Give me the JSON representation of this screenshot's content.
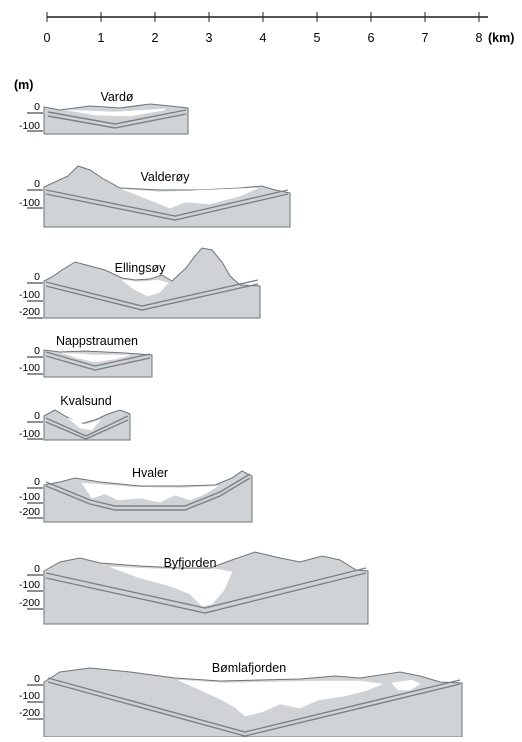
{
  "scale_bar": {
    "tick_labels": [
      "0",
      "1",
      "2",
      "3",
      "4",
      "5",
      "6",
      "7",
      "8"
    ],
    "unit": "(km)"
  },
  "depth_unit": "(m)",
  "sections": [
    {
      "name": "Vardø",
      "depth_labels": [
        "0",
        "-100"
      ]
    },
    {
      "name": "Valderøy",
      "depth_labels": [
        "0",
        "-100"
      ]
    },
    {
      "name": "Ellingsøy",
      "depth_labels": [
        "0",
        "-100",
        "-200"
      ]
    },
    {
      "name": "Nappstraumen",
      "depth_labels": [
        "0",
        "-100"
      ]
    },
    {
      "name": "Kvalsund",
      "depth_labels": [
        "0",
        "-100"
      ]
    },
    {
      "name": "Hvaler",
      "depth_labels": [
        "0",
        "-100",
        "-200"
      ]
    },
    {
      "name": "Byfjorden",
      "depth_labels": [
        "0",
        "-100",
        "-200"
      ]
    },
    {
      "name": "Bømlafjorden",
      "depth_labels": [
        "0",
        "-100",
        "-200"
      ]
    }
  ]
}
